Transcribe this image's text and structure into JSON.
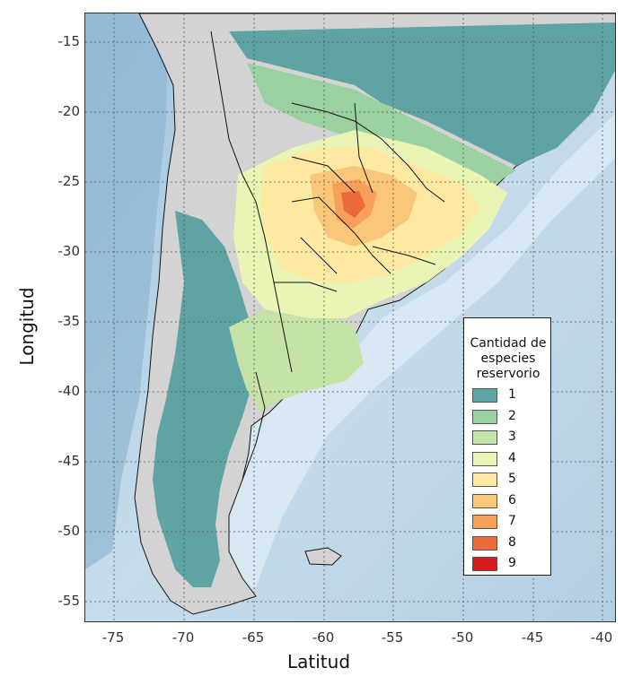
{
  "axes": {
    "x_label": "Latitud",
    "y_label": "Longitud",
    "x_ticks": [
      "-75",
      "-70",
      "-65",
      "-60",
      "-55",
      "-50",
      "-45",
      "-40"
    ],
    "y_ticks": [
      "-15",
      "-20",
      "-25",
      "-30",
      "-35",
      "-40",
      "-45",
      "-50",
      "-55"
    ]
  },
  "legend": {
    "title_lines": [
      "Cantidad de",
      "especies",
      "reservorio"
    ],
    "items": [
      {
        "label": "1",
        "color": "#5fa3a3"
      },
      {
        "label": "2",
        "color": "#99d1a1"
      },
      {
        "label": "3",
        "color": "#c6e3a7"
      },
      {
        "label": "4",
        "color": "#eaf4b4"
      },
      {
        "label": "5",
        "color": "#fde9a2"
      },
      {
        "label": "6",
        "color": "#f9c67a"
      },
      {
        "label": "7",
        "color": "#f6a05a"
      },
      {
        "label": "8",
        "color": "#ea6a3c"
      },
      {
        "label": "9",
        "color": "#d71a1c"
      }
    ]
  },
  "colors": {
    "ocean_deep": "#b9d4e6",
    "ocean_shallow": "#dcebf4",
    "land_gray": "#d3d3d3",
    "border": "#111111"
  }
}
